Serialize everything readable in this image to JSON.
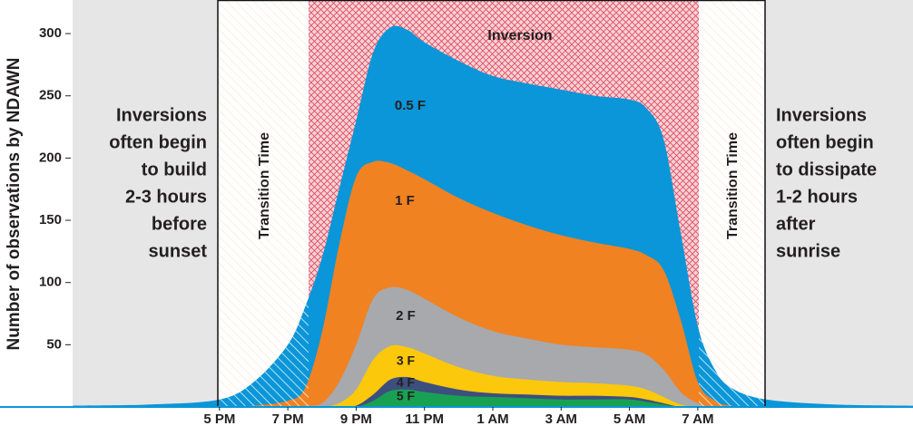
{
  "chart_data": {
    "type": "area",
    "y_label": "Number of observations by NDAWN",
    "x": [
      12.7,
      15,
      17,
      18,
      19,
      19.5,
      20,
      20.5,
      21,
      21.5,
      22,
      22.5,
      23,
      24,
      25,
      26,
      27,
      28,
      29,
      29.5,
      30,
      30.5,
      31,
      31.5,
      32,
      33,
      35,
      37.3
    ],
    "series": [
      {
        "name": "0.5 F",
        "color": "#0a96d8",
        "values": [
          1,
          2,
          6,
          20,
          50,
          80,
          120,
          175,
          230,
          285,
          305,
          303,
          293,
          278,
          266,
          260,
          255,
          250,
          247,
          240,
          215,
          140,
          65,
          30,
          15,
          6,
          2,
          1
        ]
      },
      {
        "name": "1 F",
        "color": "#f08222",
        "values": [
          0,
          0,
          0,
          1,
          5,
          15,
          60,
          130,
          185,
          197,
          196,
          190,
          183,
          168,
          156,
          146,
          138,
          132,
          127,
          122,
          110,
          70,
          20,
          5,
          1,
          0,
          0,
          0
        ]
      },
      {
        "name": "2 F",
        "color": "#a7a9ac",
        "values": [
          0,
          0,
          0,
          0,
          0,
          1,
          3,
          20,
          50,
          87,
          96,
          94,
          87,
          72,
          61,
          55,
          50,
          48,
          46,
          42,
          30,
          12,
          3,
          0,
          0,
          0,
          0,
          0
        ]
      },
      {
        "name": "3 F",
        "color": "#fcc80c",
        "values": [
          0,
          0,
          0,
          0,
          0,
          0,
          0,
          3,
          14,
          38,
          49,
          48,
          43,
          32,
          25,
          22,
          20,
          19,
          17,
          14,
          8,
          2,
          0,
          0,
          0,
          0,
          0,
          0
        ]
      },
      {
        "name": "4 F",
        "color": "#3d4f7d",
        "values": [
          0,
          0,
          0,
          0,
          0,
          0,
          0,
          0,
          1,
          10,
          22,
          24,
          20,
          14,
          11,
          10,
          9,
          9,
          8,
          6,
          3,
          0,
          0,
          0,
          0,
          0,
          0,
          0
        ]
      },
      {
        "name": "5 F",
        "color": "#18a152",
        "values": [
          0,
          0,
          0,
          0,
          0,
          0,
          0,
          0,
          0,
          5,
          13,
          14,
          12,
          9,
          8,
          7,
          6,
          6,
          6,
          4,
          2,
          0,
          0,
          0,
          0,
          0,
          0,
          0
        ]
      }
    ],
    "xlim": [
      12.7,
      37.3
    ],
    "xticks": [
      {
        "value": 17,
        "label": "5 PM"
      },
      {
        "value": 19,
        "label": "7 PM"
      },
      {
        "value": 21,
        "label": "9 PM"
      },
      {
        "value": 23,
        "label": "11 PM"
      },
      {
        "value": 25,
        "label": "1 AM"
      },
      {
        "value": 27,
        "label": "3 AM"
      },
      {
        "value": 29,
        "label": "5 AM"
      },
      {
        "value": 31,
        "label": "7 AM"
      }
    ],
    "ylim": [
      0,
      327
    ],
    "yticks": [
      50,
      100,
      150,
      200,
      250,
      300
    ],
    "zone_labels": [
      "Transition Time",
      "Inversion",
      "Transition Time"
    ],
    "notes": [
      [
        "Inversions",
        "often begin",
        "to build",
        "2-3 hours",
        "before",
        "sunset"
      ],
      [
        "Inversions",
        "often begin",
        "to dissipate",
        "1-2 hours",
        "after",
        "sunrise"
      ]
    ]
  }
}
